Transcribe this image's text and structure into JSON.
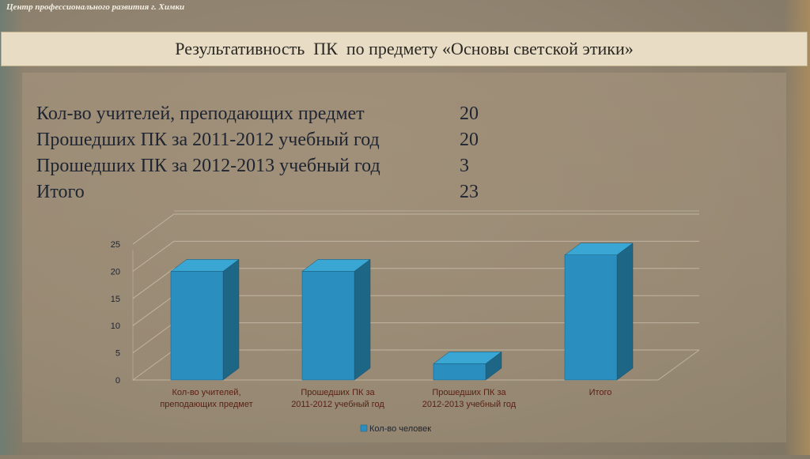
{
  "header": {
    "org": "Центр профессионального развития г. Химки",
    "title": "Результативность  ПК  по предмету «Основы светской этики»"
  },
  "stats": [
    {
      "label": "Кол-во учителей, преподающих предмет",
      "value": "20"
    },
    {
      "label": "Прошедших ПК за 2011-2012 учебный год",
      "value": "20"
    },
    {
      "label": "Прошедших ПК за 2012-2013 учебный год",
      "value": "3"
    },
    {
      "label": "Итого",
      "value": "23"
    }
  ],
  "colors": {
    "bar_front": "#2a8fbf",
    "bar_side": "#1d6686",
    "bar_top": "#3aa6d4",
    "axis_text": "#1e2430",
    "category_text": "#5a1f14"
  },
  "chart_data": {
    "type": "bar",
    "style": "3d-column",
    "categories": [
      [
        "Кол-во учителей,",
        "преподающих предмет"
      ],
      [
        "Прошедших ПК за",
        "2011-2012 учебный год"
      ],
      [
        "Прошедших ПК за",
        "2012-2013 учебный год"
      ],
      [
        "Итого"
      ]
    ],
    "series": [
      {
        "name": "Кол-во человек",
        "values": [
          20,
          20,
          3,
          23
        ]
      }
    ],
    "yticks": [
      "0",
      "5",
      "10",
      "15",
      "20",
      "25"
    ],
    "ylim": [
      0,
      25
    ],
    "grid": true,
    "legend": "bottom"
  }
}
